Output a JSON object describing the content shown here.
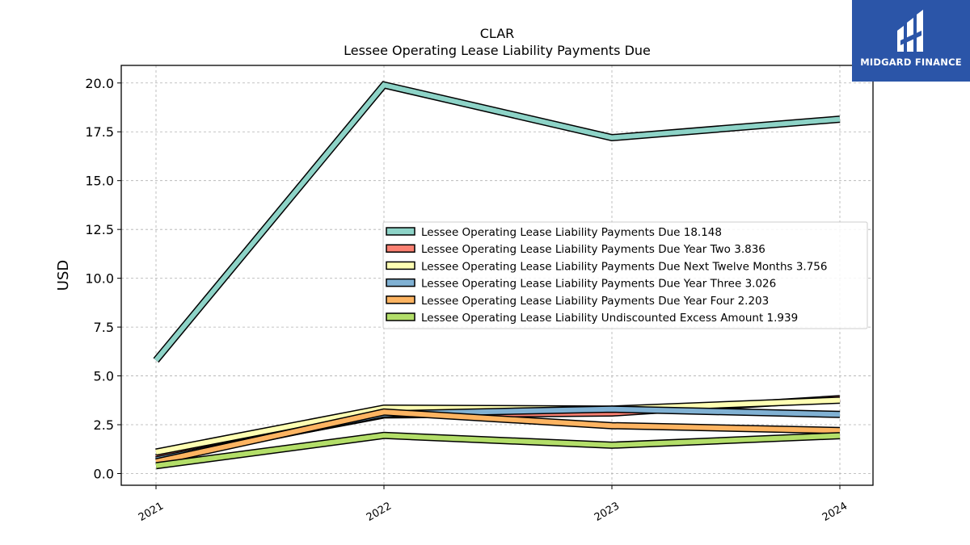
{
  "chart_data": {
    "type": "line",
    "title": "CLAR",
    "subtitle": "Lessee Operating Lease Liability Payments Due",
    "xlabel": "",
    "ylabel": "USD",
    "categories": [
      "2021",
      "2022",
      "2023",
      "2024"
    ],
    "ylim": [
      -0.6,
      20.9
    ],
    "yticks": [
      "0.0",
      "2.5",
      "5.0",
      "7.5",
      "10.0",
      "12.5",
      "15.0",
      "17.5",
      "20.0"
    ],
    "grid": true,
    "legend_position": "center-right",
    "series": [
      {
        "name": "Lessee Operating Lease Liability Payments Due",
        "legend_value": "18.148",
        "color": "#8dd3c7",
        "values": [
          5.8,
          19.9,
          17.2,
          18.148
        ]
      },
      {
        "name": "Lessee Operating Lease Liability Payments Due Year Two",
        "legend_value": "3.836",
        "color": "#fb8072",
        "values": [
          0.8,
          3.0,
          3.1,
          3.836
        ]
      },
      {
        "name": "Lessee Operating Lease Liability Payments Due Next Twelve Months",
        "legend_value": "3.756",
        "color": "#ffffb3",
        "values": [
          1.1,
          3.35,
          3.3,
          3.756
        ]
      },
      {
        "name": "Lessee Operating Lease Liability Payments Due Year Three",
        "legend_value": "3.026",
        "color": "#80b1d3",
        "values": [
          0.7,
          3.05,
          3.3,
          3.026
        ]
      },
      {
        "name": "Lessee Operating Lease Liability Payments Due Year Four",
        "legend_value": "2.203",
        "color": "#fdb462",
        "values": [
          0.6,
          3.15,
          2.45,
          2.203
        ]
      },
      {
        "name": "Lessee Operating Lease Liability Undiscounted Excess Amount",
        "legend_value": "1.939",
        "color": "#b3de69",
        "values": [
          0.4,
          1.95,
          1.45,
          1.939
        ]
      }
    ]
  },
  "logo": {
    "text": "MIDGARD FINANCE",
    "color": "#2b55a8"
  }
}
